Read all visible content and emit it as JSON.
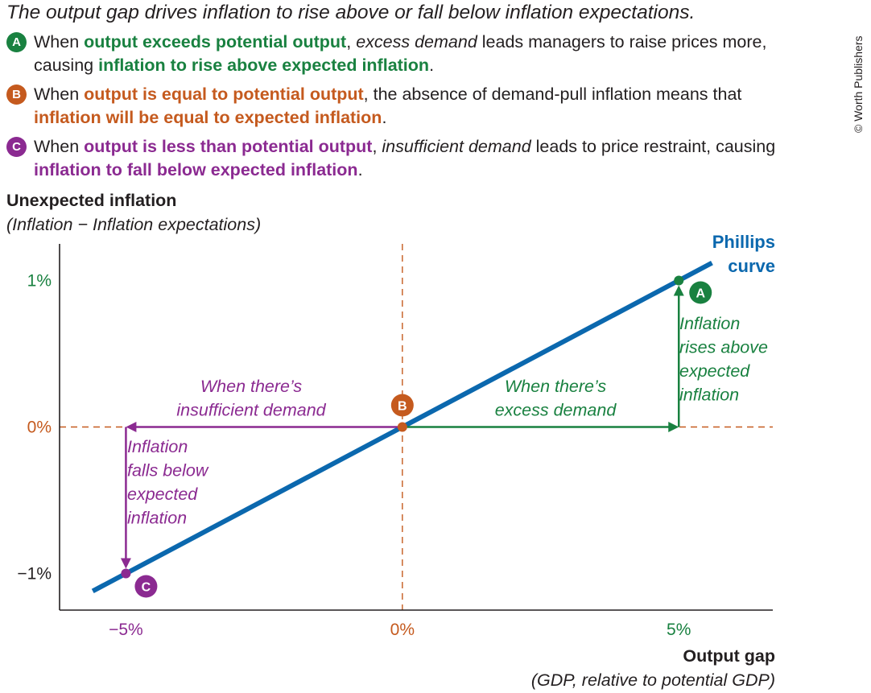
{
  "colors": {
    "green": "#198140",
    "orange": "#c55a1e",
    "purple": "#8b2a91",
    "blue": "#0b68ae",
    "text": "#231f20"
  },
  "header": {
    "title": "The output gap drives inflation to rise above or fall below inflation expectations."
  },
  "points": [
    {
      "badge": "A",
      "color": "#198140",
      "lines": [
        [
          {
            "t": "When ",
            "s": "n"
          },
          {
            "t": "output exceeds potential output",
            "s": "b"
          },
          {
            "t": ", ",
            "s": "n"
          },
          {
            "t": "excess demand",
            "s": "i"
          },
          {
            "t": " leads managers to raise prices more,",
            "s": "n"
          }
        ],
        [
          {
            "t": "causing ",
            "s": "n"
          },
          {
            "t": "inflation to rise above expected inflation",
            "s": "b"
          },
          {
            "t": ".",
            "s": "n"
          }
        ]
      ]
    },
    {
      "badge": "B",
      "color": "#c55a1e",
      "lines": [
        [
          {
            "t": "When ",
            "s": "n"
          },
          {
            "t": "output is equal to potential output",
            "s": "b"
          },
          {
            "t": ", the absence of demand-pull inflation means that",
            "s": "n"
          }
        ],
        [
          {
            "t": "inflation will be equal to expected inflation",
            "s": "b"
          },
          {
            "t": ".",
            "s": "n"
          }
        ]
      ]
    },
    {
      "badge": "C",
      "color": "#8b2a91",
      "lines": [
        [
          {
            "t": "When ",
            "s": "n"
          },
          {
            "t": "output is less than potential output",
            "s": "b"
          },
          {
            "t": ", ",
            "s": "n"
          },
          {
            "t": "insufficient demand",
            "s": "i"
          },
          {
            "t": " leads to price restraint, causing",
            "s": "n"
          }
        ],
        [
          {
            "t": "inflation to fall below expected inflation",
            "s": "b"
          },
          {
            "t": ".",
            "s": "n"
          }
        ]
      ]
    }
  ],
  "copyright": "© Worth Publishers",
  "chart_data": {
    "type": "line",
    "ylabel": "Unexpected inflation",
    "ylabel_sub": "(Inflation − Inflation expectations)",
    "xlabel": "Output gap",
    "xlabel_sub": "(GDP, relative to potential GDP)",
    "xlim": [
      -6.2,
      6.7
    ],
    "ylim": [
      -1.25,
      1.25
    ],
    "x_ticks": [
      {
        "value": -5,
        "label": "−5%",
        "color": "#8b2a91"
      },
      {
        "value": 0,
        "label": "0%",
        "color": "#c55a1e"
      },
      {
        "value": 5,
        "label": "5%",
        "color": "#198140"
      }
    ],
    "y_ticks": [
      {
        "value": 1,
        "label": "1%",
        "color": "#198140"
      },
      {
        "value": 0,
        "label": "0%",
        "color": "#c55a1e"
      },
      {
        "value": -1,
        "label": "−1%",
        "color": "#231f20"
      }
    ],
    "series": [
      {
        "name": "Phillips curve",
        "name_lines": [
          "Phillips",
          "curve"
        ],
        "color": "#0b68ae",
        "x": [
          -5.6,
          5.6
        ],
        "y": [
          -1.12,
          1.12
        ]
      }
    ],
    "points": [
      {
        "label": "A",
        "x": 5,
        "y": 1,
        "color": "#198140"
      },
      {
        "label": "B",
        "x": 0,
        "y": 0,
        "color": "#c55a1e"
      },
      {
        "label": "C",
        "x": -5,
        "y": -1,
        "color": "#8b2a91"
      }
    ],
    "annotations": [
      {
        "lines": [
          "When there’s",
          "excess demand"
        ],
        "color": "#198140"
      },
      {
        "lines": [
          "When there’s",
          "insufficient demand"
        ],
        "color": "#8b2a91"
      },
      {
        "lines": [
          "Inflation",
          "rises above",
          "expected",
          "inflation"
        ],
        "color": "#198140"
      },
      {
        "lines": [
          "Inflation",
          "falls below",
          "expected",
          "inflation"
        ],
        "color": "#8b2a91"
      }
    ]
  }
}
